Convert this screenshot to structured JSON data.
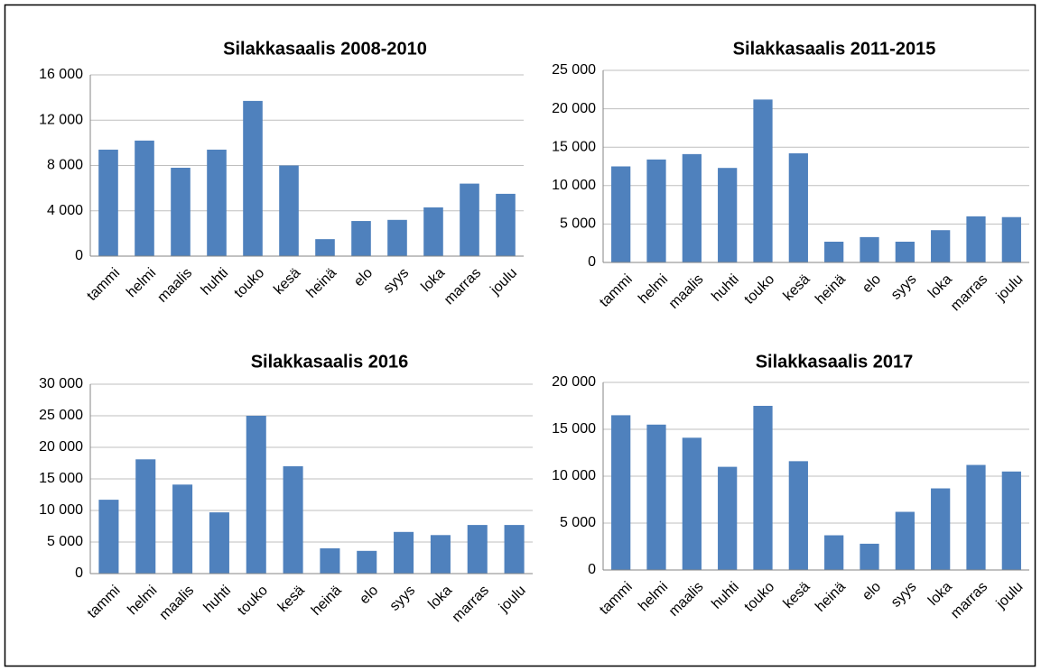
{
  "chart_data": [
    {
      "type": "bar",
      "title": "Silakkasaalis 2008-2010",
      "categories": [
        "tammi",
        "helmi",
        "maalis",
        "huhti",
        "touko",
        "kesä",
        "heinä",
        "elo",
        "syys",
        "loka",
        "marras",
        "joulu"
      ],
      "values": [
        9400,
        10200,
        7800,
        9400,
        13700,
        8000,
        1500,
        3100,
        3200,
        4300,
        6400,
        5500
      ],
      "color": "#4f81bd",
      "ylim": [
        0,
        16000
      ],
      "yticks": [
        0,
        {
          "value": 4000,
          "label": "4 000"
        },
        {
          "value": 8000,
          "label": "8 000"
        },
        {
          "value": 12000,
          "label": "12 000"
        },
        {
          "value": 16000,
          "label": "16 000"
        }
      ],
      "grid": true
    },
    {
      "type": "bar",
      "title": "Silakkasaalis 2011-2015",
      "categories": [
        "tammi",
        "helmi",
        "maalis",
        "huhti",
        "touko",
        "kesä",
        "heinä",
        "elo",
        "syys",
        "loka",
        "marras",
        "joulu"
      ],
      "values": [
        12500,
        13400,
        14100,
        12300,
        21200,
        14200,
        2700,
        3300,
        2700,
        4200,
        6000,
        5900
      ],
      "color": "#4f81bd",
      "ylim": [
        0,
        25000
      ],
      "yticks": [
        0,
        {
          "value": 5000,
          "label": "5 000"
        },
        {
          "value": 10000,
          "label": "10 000"
        },
        {
          "value": 15000,
          "label": "15 000"
        },
        {
          "value": 20000,
          "label": "20 000"
        },
        {
          "value": 25000,
          "label": "25 000"
        }
      ],
      "grid": true
    },
    {
      "type": "bar",
      "title": "Silakkasaalis 2016",
      "categories": [
        "tammi",
        "helmi",
        "maalis",
        "huhti",
        "touko",
        "kesä",
        "heinä",
        "elo",
        "syys",
        "loka",
        "marras",
        "joulu"
      ],
      "values": [
        11700,
        18100,
        14100,
        9700,
        25000,
        17000,
        4000,
        3600,
        6600,
        6100,
        7700,
        7700
      ],
      "color": "#4f81bd",
      "ylim": [
        0,
        30000
      ],
      "yticks": [
        0,
        {
          "value": 5000,
          "label": "5 000"
        },
        {
          "value": 10000,
          "label": "10 000"
        },
        {
          "value": 15000,
          "label": "15 000"
        },
        {
          "value": 20000,
          "label": "20 000"
        },
        {
          "value": 25000,
          "label": "25 000"
        },
        {
          "value": 30000,
          "label": "30 000"
        }
      ],
      "grid": true
    },
    {
      "type": "bar",
      "title": "Silakkasaalis 2017",
      "categories": [
        "tammi",
        "helmi",
        "maalis",
        "huhti",
        "touko",
        "kesä",
        "heinä",
        "elo",
        "syys",
        "loka",
        "marras",
        "joulu"
      ],
      "values": [
        16500,
        15500,
        14100,
        11000,
        17500,
        11600,
        3700,
        2800,
        6200,
        8700,
        11200,
        10500
      ],
      "color": "#4f81bd",
      "ylim": [
        0,
        20000
      ],
      "yticks": [
        0,
        {
          "value": 5000,
          "label": "5 000"
        },
        {
          "value": 10000,
          "label": "10 000"
        },
        {
          "value": 15000,
          "label": "15 000"
        },
        {
          "value": 20000,
          "label": "20 000"
        }
      ],
      "grid": true
    }
  ]
}
